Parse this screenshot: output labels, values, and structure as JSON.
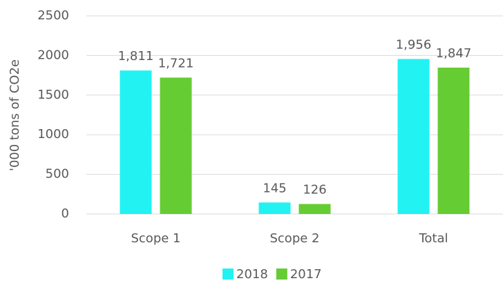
{
  "chart_data": {
    "type": "bar",
    "y_label": "'000 tons of CO2e",
    "categories": [
      "Scope 1",
      "Scope 2",
      "Total"
    ],
    "series": [
      {
        "name": "2018",
        "color": "#22F2F2",
        "values": [
          1811,
          145,
          1956
        ],
        "value_labels": [
          "1,811",
          "145",
          "1,956"
        ]
      },
      {
        "name": "2017",
        "color": "#66CC33",
        "values": [
          1721,
          126,
          1847
        ],
        "value_labels": [
          "1,721",
          "126",
          "1,847"
        ]
      }
    ],
    "ylim": [
      0,
      2500
    ],
    "yticks": [
      0,
      500,
      1000,
      1500,
      2000,
      2500
    ],
    "grid": true,
    "legend": "bottom"
  }
}
